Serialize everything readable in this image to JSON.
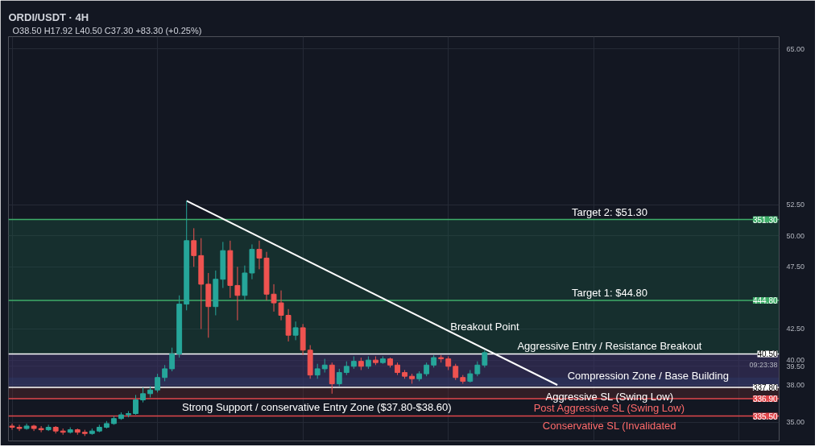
{
  "chart_data": {
    "type": "candlestick",
    "title": "ORDI/USDT · 4H",
    "subtitle": "O38.50 H17.92 L40.50 C37.30 +83.30 (+0.25%)",
    "categories": [
      null,
      null,
      null,
      null,
      null,
      null,
      null,
      null,
      null,
      null,
      null,
      null,
      null,
      null,
      null,
      null,
      null,
      null,
      null,
      null,
      null,
      null,
      null,
      null,
      null,
      null,
      null,
      null,
      null,
      null,
      null,
      null,
      null,
      null,
      null,
      null,
      null,
      null,
      null,
      null,
      null,
      null,
      null,
      null,
      null,
      null,
      null,
      null,
      null,
      null,
      null,
      null,
      null,
      null,
      null,
      null,
      null,
      null,
      null,
      null,
      null,
      null,
      null,
      null,
      null,
      null,
      null,
      null,
      null,
      null,
      null,
      null,
      null,
      null,
      null,
      null,
      null,
      null,
      null,
      null,
      null,
      null,
      null,
      null,
      null,
      null,
      null,
      null,
      null,
      null,
      null,
      null,
      null,
      null,
      null,
      null,
      null,
      null,
      null,
      null,
      null,
      null,
      null,
      null,
      null,
      null
    ],
    "tick_labels": "y",
    "ohlc": [
      [
        34.7,
        34.9,
        34.4,
        34.6
      ],
      [
        34.6,
        34.8,
        34.3,
        34.5
      ],
      [
        34.5,
        34.9,
        34.4,
        34.7
      ],
      [
        34.7,
        34.8,
        34.3,
        34.5
      ],
      [
        34.5,
        34.7,
        34.2,
        34.4
      ],
      [
        34.4,
        34.8,
        34.3,
        34.6
      ],
      [
        34.6,
        34.7,
        34.1,
        34.3
      ],
      [
        34.3,
        34.5,
        34.0,
        34.2
      ],
      [
        34.2,
        34.6,
        34.1,
        34.4
      ],
      [
        34.4,
        34.5,
        34.0,
        34.2
      ],
      [
        34.2,
        34.4,
        33.9,
        34.1
      ],
      [
        34.1,
        34.5,
        34.0,
        34.3
      ],
      [
        34.3,
        34.8,
        34.2,
        34.6
      ],
      [
        34.6,
        35.1,
        34.5,
        34.9
      ],
      [
        34.9,
        35.5,
        34.8,
        35.3
      ],
      [
        35.3,
        35.8,
        35.2,
        35.6
      ],
      [
        35.6,
        35.9,
        35.4,
        35.7
      ],
      [
        35.7,
        37.2,
        35.6,
        36.8
      ],
      [
        36.8,
        37.8,
        36.6,
        37.3
      ],
      [
        37.3,
        37.9,
        37.0,
        37.6
      ],
      [
        37.6,
        38.9,
        37.4,
        38.6
      ],
      [
        38.6,
        39.6,
        38.3,
        39.3
      ],
      [
        39.3,
        41.0,
        39.1,
        40.5
      ],
      [
        40.5,
        45.2,
        40.2,
        44.5
      ],
      [
        44.5,
        52.8,
        44.0,
        49.6
      ],
      [
        49.6,
        50.6,
        47.5,
        48.4
      ],
      [
        48.4,
        49.8,
        42.5,
        46.1
      ],
      [
        46.1,
        47.0,
        41.8,
        44.3
      ],
      [
        44.3,
        47.2,
        43.6,
        46.5
      ],
      [
        46.5,
        49.5,
        45.8,
        48.8
      ],
      [
        48.8,
        49.6,
        45.0,
        46.0
      ],
      [
        46.0,
        47.5,
        43.2,
        45.2
      ],
      [
        45.2,
        47.6,
        44.8,
        47.0
      ],
      [
        47.0,
        49.3,
        46.5,
        48.9
      ],
      [
        48.9,
        49.6,
        47.3,
        48.2
      ],
      [
        48.2,
        48.7,
        44.8,
        45.3
      ],
      [
        45.3,
        46.1,
        43.9,
        44.6
      ],
      [
        44.6,
        45.6,
        43.2,
        43.6
      ],
      [
        43.6,
        44.1,
        41.5,
        42.0
      ],
      [
        42.0,
        43.1,
        41.6,
        42.6
      ],
      [
        42.6,
        42.9,
        40.4,
        40.8
      ],
      [
        40.8,
        41.2,
        38.5,
        38.8
      ],
      [
        38.8,
        39.7,
        38.5,
        39.3
      ],
      [
        39.3,
        40.1,
        39.0,
        39.6
      ],
      [
        39.6,
        39.8,
        37.3,
        38.1
      ],
      [
        38.1,
        39.3,
        37.9,
        39.0
      ],
      [
        39.0,
        39.9,
        38.8,
        39.5
      ],
      [
        39.5,
        40.3,
        39.3,
        39.9
      ],
      [
        39.9,
        40.2,
        39.2,
        39.5
      ],
      [
        39.5,
        40.3,
        39.3,
        40.0
      ],
      [
        40.0,
        40.3,
        39.6,
        39.8
      ],
      [
        39.8,
        40.3,
        39.7,
        40.1
      ],
      [
        40.1,
        40.2,
        39.4,
        39.6
      ],
      [
        39.6,
        39.8,
        38.8,
        39.0
      ],
      [
        39.0,
        39.2,
        38.5,
        38.7
      ],
      [
        38.7,
        38.9,
        38.1,
        38.5
      ],
      [
        38.5,
        39.1,
        38.3,
        38.9
      ],
      [
        38.9,
        39.8,
        38.7,
        39.6
      ],
      [
        39.6,
        40.4,
        39.4,
        40.2
      ],
      [
        40.2,
        40.4,
        39.8,
        40.1
      ],
      [
        40.1,
        40.3,
        39.2,
        39.5
      ],
      [
        39.5,
        39.7,
        38.4,
        38.6
      ],
      [
        38.6,
        38.8,
        38.1,
        38.3
      ],
      [
        38.3,
        39.2,
        38.2,
        38.9
      ],
      [
        38.9,
        39.9,
        38.7,
        39.6
      ],
      [
        39.6,
        40.8,
        39.4,
        40.6
      ],
      null,
      null,
      null,
      null,
      null,
      null,
      null,
      null,
      null,
      null,
      null,
      null,
      null,
      null,
      null,
      null,
      null,
      null,
      null,
      null,
      null,
      null,
      null,
      null,
      null,
      null,
      null,
      null,
      null,
      null,
      null,
      null,
      null,
      null,
      null,
      null,
      null,
      null,
      null,
      null
    ],
    "series": [
      {
        "type": "line",
        "color": "#ffffff",
        "values": [
          null,
          null,
          null,
          null,
          null,
          null,
          null,
          null,
          null,
          null,
          null,
          null,
          null,
          null,
          null,
          null,
          null,
          null,
          null,
          null,
          null,
          null,
          null,
          null,
          52.8,
          null,
          null,
          null,
          null,
          null,
          null,
          null,
          null,
          null,
          null,
          null,
          null,
          null,
          null,
          null,
          null,
          null,
          null,
          null,
          null,
          null,
          null,
          null,
          null,
          null,
          null,
          null,
          null,
          null,
          null,
          null,
          null,
          null,
          null,
          null,
          null,
          null,
          null,
          null,
          null,
          null,
          null,
          null,
          null,
          null,
          null,
          null,
          null,
          null,
          null,
          38.0,
          null,
          null,
          null,
          null,
          null,
          null,
          null,
          null,
          null,
          null,
          null,
          null,
          null,
          null,
          null,
          null,
          null,
          null,
          null,
          null,
          null,
          null,
          null,
          null,
          null,
          null,
          null,
          null,
          null,
          null
        ]
      }
    ],
    "ylim": [
      33.5,
      66
    ],
    "yticks": [
      {
        "value": 35,
        "label": "35.00"
      },
      {
        "value": 38,
        "label": "38.00"
      },
      {
        "value": 39.5,
        "label": "39.50"
      },
      {
        "value": 40,
        "label": "40.00"
      },
      {
        "value": 42.5,
        "label": "42.50"
      },
      {
        "value": 47.5,
        "label": "47.50"
      },
      {
        "value": 50,
        "label": "50.00"
      },
      {
        "value": 52.5,
        "label": "52.50"
      },
      {
        "value": 65,
        "label": "65.00"
      }
    ],
    "grid": true,
    "ref_lines": [
      {
        "axis": "y",
        "value": 51.3,
        "label": "Target 2: $51.30",
        "color": "#3fae6a"
      },
      {
        "axis": "y",
        "value": 44.8,
        "label": "Target 1: $44.80",
        "color": "#3fae6a"
      },
      {
        "axis": "y",
        "value": 40.5,
        "label": "Aggressive Entry / Resistance Breakout",
        "color": "#ffffff"
      },
      {
        "axis": "y",
        "value": 37.8,
        "label": "Aggressive SL (Swing Low)",
        "color": "#ffffff"
      },
      {
        "axis": "y",
        "value": 36.9,
        "label": "Post Aggressive SL (Swing Low)",
        "color": "#e0474c"
      },
      {
        "axis": "y",
        "value": 35.5,
        "label": "Conservative SL (Invalidated",
        "color": "#e0474c"
      }
    ],
    "bands": [
      {
        "axis": "y",
        "from": 40.5,
        "to": 51.3,
        "color": "#1e5c45"
      },
      {
        "axis": "y",
        "from": 36.9,
        "to": 40.5,
        "color": "#6b2a2e"
      },
      {
        "axis": "y",
        "from": 37.9,
        "to": 40.5,
        "color": "#1f3a8a"
      },
      {
        "axis": "y",
        "from": 37.8,
        "to": 38.6,
        "label": "Strong Support / conservative Entry Zone ($37.80-$38.60)",
        "color": "#2d3f70"
      }
    ],
    "annotations": [
      {
        "text": "Breakout Point",
        "y": 40.8
      },
      "Compression Zone / Base Building",
      "351.30",
      "444.80",
      "40.50",
      "337.80",
      "336.90",
      "335.50",
      "09:23:38"
    ]
  }
}
